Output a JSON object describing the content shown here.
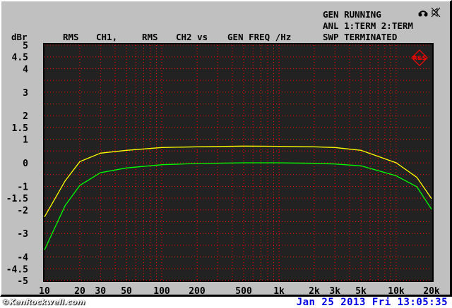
{
  "status": {
    "line1": "GEN RUNNING",
    "line2": "ANL 1:TERM 2:TERM",
    "line3": "SWP TERMINATED"
  },
  "header": {
    "unit": "dBr",
    "rms1": "RMS",
    "ch1": "CH1,",
    "rms2": "RMS",
    "ch2": "CH2 vs",
    "gen": "GEN FREQ /Hz"
  },
  "icons": [
    "headphones-icon",
    "speaker-muted-icon",
    "rohde-schwarz-logo"
  ],
  "logo_text": "R&S",
  "footer": {
    "watermark": "©KenRockwell.com",
    "date": "Jan 25 2013 Fri 13:05:35"
  },
  "colors": {
    "background": "#c0c0c0",
    "plot": "#222222",
    "grid": "#ff0000",
    "ch1": "#ffff00",
    "ch2": "#00ff00",
    "date": "#0000e0"
  },
  "chart_data": {
    "type": "line",
    "xscale": "log",
    "xlim": [
      10,
      20000
    ],
    "ylim": [
      -5,
      5
    ],
    "ylabel": "dBr",
    "xlabel": "GEN FREQ /Hz",
    "grid": true,
    "xticks": [
      10,
      20,
      30,
      50,
      100,
      200,
      500,
      1000,
      2000,
      3000,
      5000,
      10000,
      20000
    ],
    "xtick_labels": [
      "10",
      "20",
      "30",
      "50",
      "100",
      "200",
      "500",
      "1k",
      "2k",
      "3k",
      "5k",
      "10k",
      "20k"
    ],
    "yticks": [
      5,
      4.5,
      4,
      3,
      2,
      1.5,
      1,
      0,
      -1,
      -1.5,
      -2,
      -3,
      -4,
      -4.5,
      -5
    ],
    "ytick_labels": [
      "5",
      "4.5",
      "4",
      "3",
      "2",
      "1.5",
      "1",
      "0",
      "-1",
      "-1.5",
      "-2",
      "-3",
      "-4",
      "-4.5",
      "-5"
    ],
    "x": [
      10,
      15,
      20,
      30,
      50,
      100,
      200,
      500,
      1000,
      2000,
      3000,
      5000,
      10000,
      15000,
      20000
    ],
    "series": [
      {
        "color": "#ffff00",
        "values": [
          -2.3,
          -0.77,
          0.05,
          0.41,
          0.53,
          0.65,
          0.68,
          0.71,
          0.7,
          0.68,
          0.65,
          0.53,
          0.0,
          -0.62,
          -1.52
        ]
      },
      {
        "color": "#00ff00",
        "values": [
          -3.7,
          -1.82,
          -0.96,
          -0.42,
          -0.22,
          -0.08,
          -0.03,
          0.0,
          0.0,
          -0.02,
          -0.05,
          -0.13,
          -0.55,
          -1.02,
          -1.97
        ]
      }
    ]
  }
}
